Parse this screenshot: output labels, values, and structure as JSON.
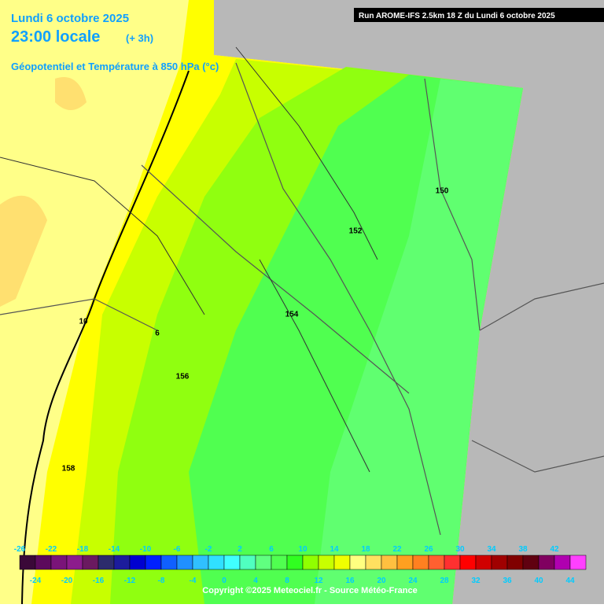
{
  "header": {
    "date": "Lundi 6 octobre 2025",
    "time": "23:00 locale",
    "offset": "(+ 3h)",
    "field": "Géopotentiel et Température à 850 hPa (°c)"
  },
  "run": "Run AROME-IFS 2.5km 18 Z du Lundi 6 octobre 2025",
  "contours": [
    "150",
    "152",
    "154",
    "156",
    "158",
    "10",
    "6"
  ],
  "scale": {
    "top_labels": [
      -26,
      -22,
      -18,
      -14,
      -10,
      -6,
      -2,
      2,
      6,
      10,
      14,
      18,
      22,
      26,
      30,
      34,
      38,
      42
    ],
    "bottom_labels": [
      -24,
      -20,
      -16,
      -12,
      -8,
      -4,
      0,
      4,
      8,
      12,
      16,
      20,
      24,
      28,
      32,
      36,
      40,
      44
    ],
    "colors": [
      "#3a0838",
      "#5c0a5c",
      "#7a1479",
      "#8c1c8c",
      "#6a1a60",
      "#2c2c6c",
      "#1c1c9c",
      "#0000d0",
      "#0020ff",
      "#1060ff",
      "#2090ff",
      "#30c0ff",
      "#30e0ff",
      "#40ffff",
      "#50ffc0",
      "#60ff80",
      "#50ff50",
      "#30ff20",
      "#90ff00",
      "#c8ff00",
      "#f0ff00",
      "#ffff80",
      "#ffe060",
      "#ffc040",
      "#ffa020",
      "#ff8020",
      "#ff6030",
      "#ff3030",
      "#ff0000",
      "#d00000",
      "#a00000",
      "#800000",
      "#600010",
      "#800060",
      "#b000b0",
      "#ff40ff"
    ]
  },
  "copyright": "Copyright ©2025 Meteociel.fr - Source Météo-France"
}
